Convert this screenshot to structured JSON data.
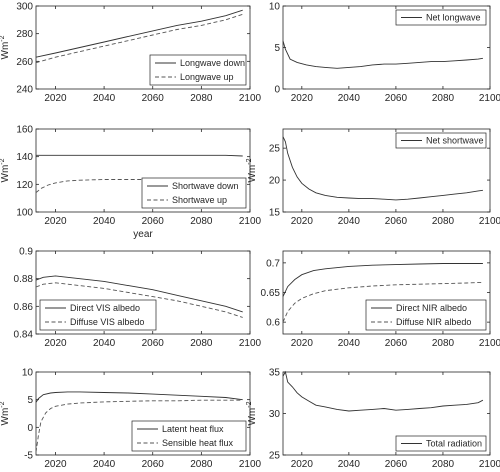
{
  "chart_data": [
    {
      "type": "line",
      "ylabel": "Wm",
      "ylabel_sup": "-2",
      "xlim": [
        2012,
        2100
      ],
      "ylim": [
        240,
        300
      ],
      "xticks": [
        2020,
        2040,
        2060,
        2080,
        2100
      ],
      "xtick_labels": [
        "2020",
        "2040",
        "2060",
        "2080",
        "2100"
      ],
      "yticks": [
        240,
        260,
        280,
        300
      ],
      "ytick_labels": [
        "240",
        "260",
        "280",
        "300"
      ],
      "legend": "bottom-right",
      "series": [
        {
          "name": "Longwave down",
          "style": "solid",
          "x": [
            2012,
            2020,
            2030,
            2040,
            2050,
            2060,
            2070,
            2080,
            2090,
            2097
          ],
          "y": [
            263,
            266,
            270,
            274,
            278,
            282,
            286,
            289,
            293,
            297
          ]
        },
        {
          "name": "Longwave up",
          "style": "dashed",
          "x": [
            2012,
            2020,
            2030,
            2040,
            2050,
            2060,
            2070,
            2080,
            2090,
            2097
          ],
          "y": [
            259,
            263,
            267,
            271,
            275,
            279,
            283,
            286,
            290,
            294
          ]
        }
      ]
    },
    {
      "type": "line",
      "ylabel": "",
      "ylabel_sup": "",
      "xlim": [
        2012,
        2100
      ],
      "ylim": [
        0,
        10
      ],
      "xticks": [
        2020,
        2040,
        2060,
        2080,
        2100
      ],
      "xtick_labels": [
        "2020",
        "2040",
        "2060",
        "2080",
        "2100"
      ],
      "yticks": [
        0,
        5,
        10
      ],
      "ytick_labels": [
        "0",
        "5",
        "10"
      ],
      "legend": "top-right",
      "series": [
        {
          "name": "Net longwave",
          "style": "solid",
          "x": [
            2012,
            2013,
            2015,
            2018,
            2022,
            2026,
            2030,
            2035,
            2040,
            2045,
            2050,
            2055,
            2060,
            2065,
            2070,
            2075,
            2080,
            2085,
            2090,
            2095,
            2097
          ],
          "y": [
            5.8,
            4.8,
            3.6,
            3.2,
            2.9,
            2.7,
            2.6,
            2.5,
            2.6,
            2.7,
            2.9,
            3.0,
            3.0,
            3.1,
            3.2,
            3.3,
            3.3,
            3.4,
            3.5,
            3.6,
            3.7
          ]
        }
      ]
    },
    {
      "type": "line",
      "ylabel": "Wm",
      "ylabel_sup": "-2",
      "xlabel": "year",
      "xlim": [
        2012,
        2100
      ],
      "ylim": [
        100,
        160
      ],
      "xticks": [
        2020,
        2040,
        2060,
        2080,
        2100
      ],
      "xtick_labels": [
        "2020",
        "2040",
        "2060",
        "2080",
        "2100"
      ],
      "yticks": [
        100,
        120,
        140,
        160
      ],
      "ytick_labels": [
        "100",
        "120",
        "140",
        "160"
      ],
      "legend": "bottom-right",
      "series": [
        {
          "name": "Shortwave down",
          "style": "solid",
          "x": [
            2012,
            2020,
            2030,
            2040,
            2050,
            2060,
            2070,
            2080,
            2090,
            2097
          ],
          "y": [
            141,
            141,
            141,
            141,
            141,
            141,
            141,
            141,
            141,
            140.5
          ]
        },
        {
          "name": "Shortwave up",
          "style": "dashed",
          "x": [
            2012,
            2014,
            2017,
            2020,
            2025,
            2030,
            2040,
            2050,
            2060,
            2070,
            2080,
            2090,
            2097
          ],
          "y": [
            114,
            117,
            119.5,
            121,
            122.5,
            123,
            123.5,
            123.5,
            123.5,
            123.5,
            123,
            122.5,
            122
          ]
        }
      ]
    },
    {
      "type": "line",
      "ylabel": "Wm",
      "ylabel_sup": "-2",
      "xlim": [
        2012,
        2100
      ],
      "ylim": [
        15,
        28
      ],
      "xticks": [
        2020,
        2040,
        2060,
        2080,
        2100
      ],
      "xtick_labels": [
        "2020",
        "2040",
        "2060",
        "2080",
        "2100"
      ],
      "yticks": [
        15,
        20,
        25
      ],
      "ytick_labels": [
        "15",
        "20",
        "25"
      ],
      "legend": "top-right",
      "series": [
        {
          "name": "Net shortwave",
          "style": "solid",
          "x": [
            2012,
            2013,
            2014,
            2016,
            2018,
            2020,
            2023,
            2026,
            2030,
            2035,
            2040,
            2045,
            2050,
            2055,
            2060,
            2065,
            2070,
            2075,
            2080,
            2085,
            2090,
            2095,
            2097
          ],
          "y": [
            26.8,
            26,
            24.2,
            22,
            20.5,
            19.5,
            18.6,
            18,
            17.6,
            17.3,
            17.2,
            17.1,
            17.1,
            17,
            16.9,
            17,
            17.2,
            17.4,
            17.6,
            17.8,
            18,
            18.3,
            18.4
          ]
        }
      ]
    },
    {
      "type": "line",
      "ylabel": "",
      "ylabel_sup": "",
      "xlim": [
        2012,
        2100
      ],
      "ylim": [
        0.84,
        0.9
      ],
      "xticks": [
        2020,
        2040,
        2060,
        2080,
        2100
      ],
      "xtick_labels": [
        "2020",
        "2040",
        "2060",
        "2080",
        "2100"
      ],
      "yticks": [
        0.84,
        0.86,
        0.88,
        0.9
      ],
      "ytick_labels": [
        "0.84",
        "0.86",
        "0.88",
        "0.9"
      ],
      "legend": "bottom-left",
      "series": [
        {
          "name": "Direct VIS albedo",
          "style": "solid",
          "x": [
            2012,
            2015,
            2020,
            2025,
            2030,
            2040,
            2050,
            2060,
            2070,
            2080,
            2090,
            2097
          ],
          "y": [
            0.879,
            0.881,
            0.882,
            0.881,
            0.88,
            0.878,
            0.875,
            0.872,
            0.868,
            0.864,
            0.86,
            0.856
          ]
        },
        {
          "name": "Diffuse VIS albedo",
          "style": "dashed",
          "x": [
            2012,
            2015,
            2020,
            2025,
            2030,
            2040,
            2050,
            2060,
            2070,
            2080,
            2090,
            2097
          ],
          "y": [
            0.874,
            0.876,
            0.877,
            0.876,
            0.875,
            0.873,
            0.87,
            0.867,
            0.864,
            0.86,
            0.856,
            0.852
          ]
        }
      ]
    },
    {
      "type": "line",
      "ylabel": "",
      "ylabel_sup": "",
      "xlim": [
        2012,
        2100
      ],
      "ylim": [
        0.58,
        0.72
      ],
      "xticks": [
        2020,
        2040,
        2060,
        2080,
        2100
      ],
      "xtick_labels": [
        "2020",
        "2040",
        "2060",
        "2080",
        "2100"
      ],
      "yticks": [
        0.6,
        0.65,
        0.7
      ],
      "ytick_labels": [
        "0.6",
        "0.65",
        "0.7"
      ],
      "legend": "bottom-right",
      "series": [
        {
          "name": "Direct NIR albedo",
          "style": "solid",
          "x": [
            2012,
            2014,
            2017,
            2020,
            2025,
            2030,
            2040,
            2050,
            2060,
            2070,
            2080,
            2090,
            2097
          ],
          "y": [
            0.643,
            0.66,
            0.672,
            0.68,
            0.687,
            0.69,
            0.694,
            0.696,
            0.697,
            0.698,
            0.699,
            0.699,
            0.699
          ]
        },
        {
          "name": "Diffuse NIR albedo",
          "style": "dashed",
          "x": [
            2012,
            2014,
            2017,
            2020,
            2025,
            2030,
            2040,
            2050,
            2060,
            2070,
            2080,
            2090,
            2097
          ],
          "y": [
            0.6,
            0.618,
            0.632,
            0.64,
            0.648,
            0.653,
            0.658,
            0.661,
            0.663,
            0.664,
            0.665,
            0.666,
            0.667
          ]
        }
      ]
    },
    {
      "type": "line",
      "ylabel": "Wm",
      "ylabel_sup": "-2",
      "xlim": [
        2012,
        2100
      ],
      "ylim": [
        -5,
        10
      ],
      "xticks": [
        2020,
        2040,
        2060,
        2080,
        2100
      ],
      "xtick_labels": [
        "2020",
        "2040",
        "2060",
        "2080",
        "2100"
      ],
      "yticks": [
        -5,
        0,
        5,
        10
      ],
      "ytick_labels": [
        "-5",
        "0",
        "5",
        "10"
      ],
      "legend": "bottom-right",
      "series": [
        {
          "name": "Latent heat flux",
          "style": "solid",
          "x": [
            2012,
            2013,
            2015,
            2018,
            2020,
            2025,
            2030,
            2040,
            2050,
            2060,
            2070,
            2080,
            2090,
            2097
          ],
          "y": [
            4.5,
            5.2,
            5.9,
            6.2,
            6.3,
            6.4,
            6.4,
            6.3,
            6.2,
            6.0,
            5.8,
            5.6,
            5.4,
            5.0
          ]
        },
        {
          "name": "Sensible heat flux",
          "style": "dashed",
          "x": [
            2012,
            2013,
            2014,
            2016,
            2018,
            2020,
            2025,
            2030,
            2040,
            2050,
            2060,
            2070,
            2080,
            2090,
            2097
          ],
          "y": [
            -4.5,
            -1.5,
            1.0,
            2.6,
            3.4,
            3.8,
            4.2,
            4.4,
            4.6,
            4.7,
            4.8,
            4.8,
            4.9,
            4.9,
            4.9
          ]
        }
      ]
    },
    {
      "type": "line",
      "ylabel": "Wm",
      "ylabel_sup": "-2",
      "xlim": [
        2012,
        2100
      ],
      "ylim": [
        25,
        35
      ],
      "xticks": [
        2020,
        2040,
        2060,
        2080,
        2100
      ],
      "xtick_labels": [
        "2020",
        "2040",
        "2060",
        "2080",
        "2100"
      ],
      "yticks": [
        25,
        30,
        35
      ],
      "ytick_labels": [
        "25",
        "30",
        "35"
      ],
      "legend": "bottom-right",
      "series": [
        {
          "name": "Total radiation",
          "style": "solid",
          "x": [
            2012,
            2013,
            2014,
            2016,
            2018,
            2020,
            2023,
            2026,
            2030,
            2035,
            2040,
            2045,
            2050,
            2055,
            2060,
            2065,
            2070,
            2075,
            2080,
            2085,
            2090,
            2095,
            2097
          ],
          "y": [
            34.5,
            35,
            33.8,
            33.2,
            32.5,
            32.0,
            31.5,
            31.0,
            30.8,
            30.5,
            30.3,
            30.4,
            30.5,
            30.6,
            30.4,
            30.5,
            30.6,
            30.7,
            30.9,
            31.0,
            31.1,
            31.3,
            31.6
          ]
        }
      ]
    }
  ]
}
